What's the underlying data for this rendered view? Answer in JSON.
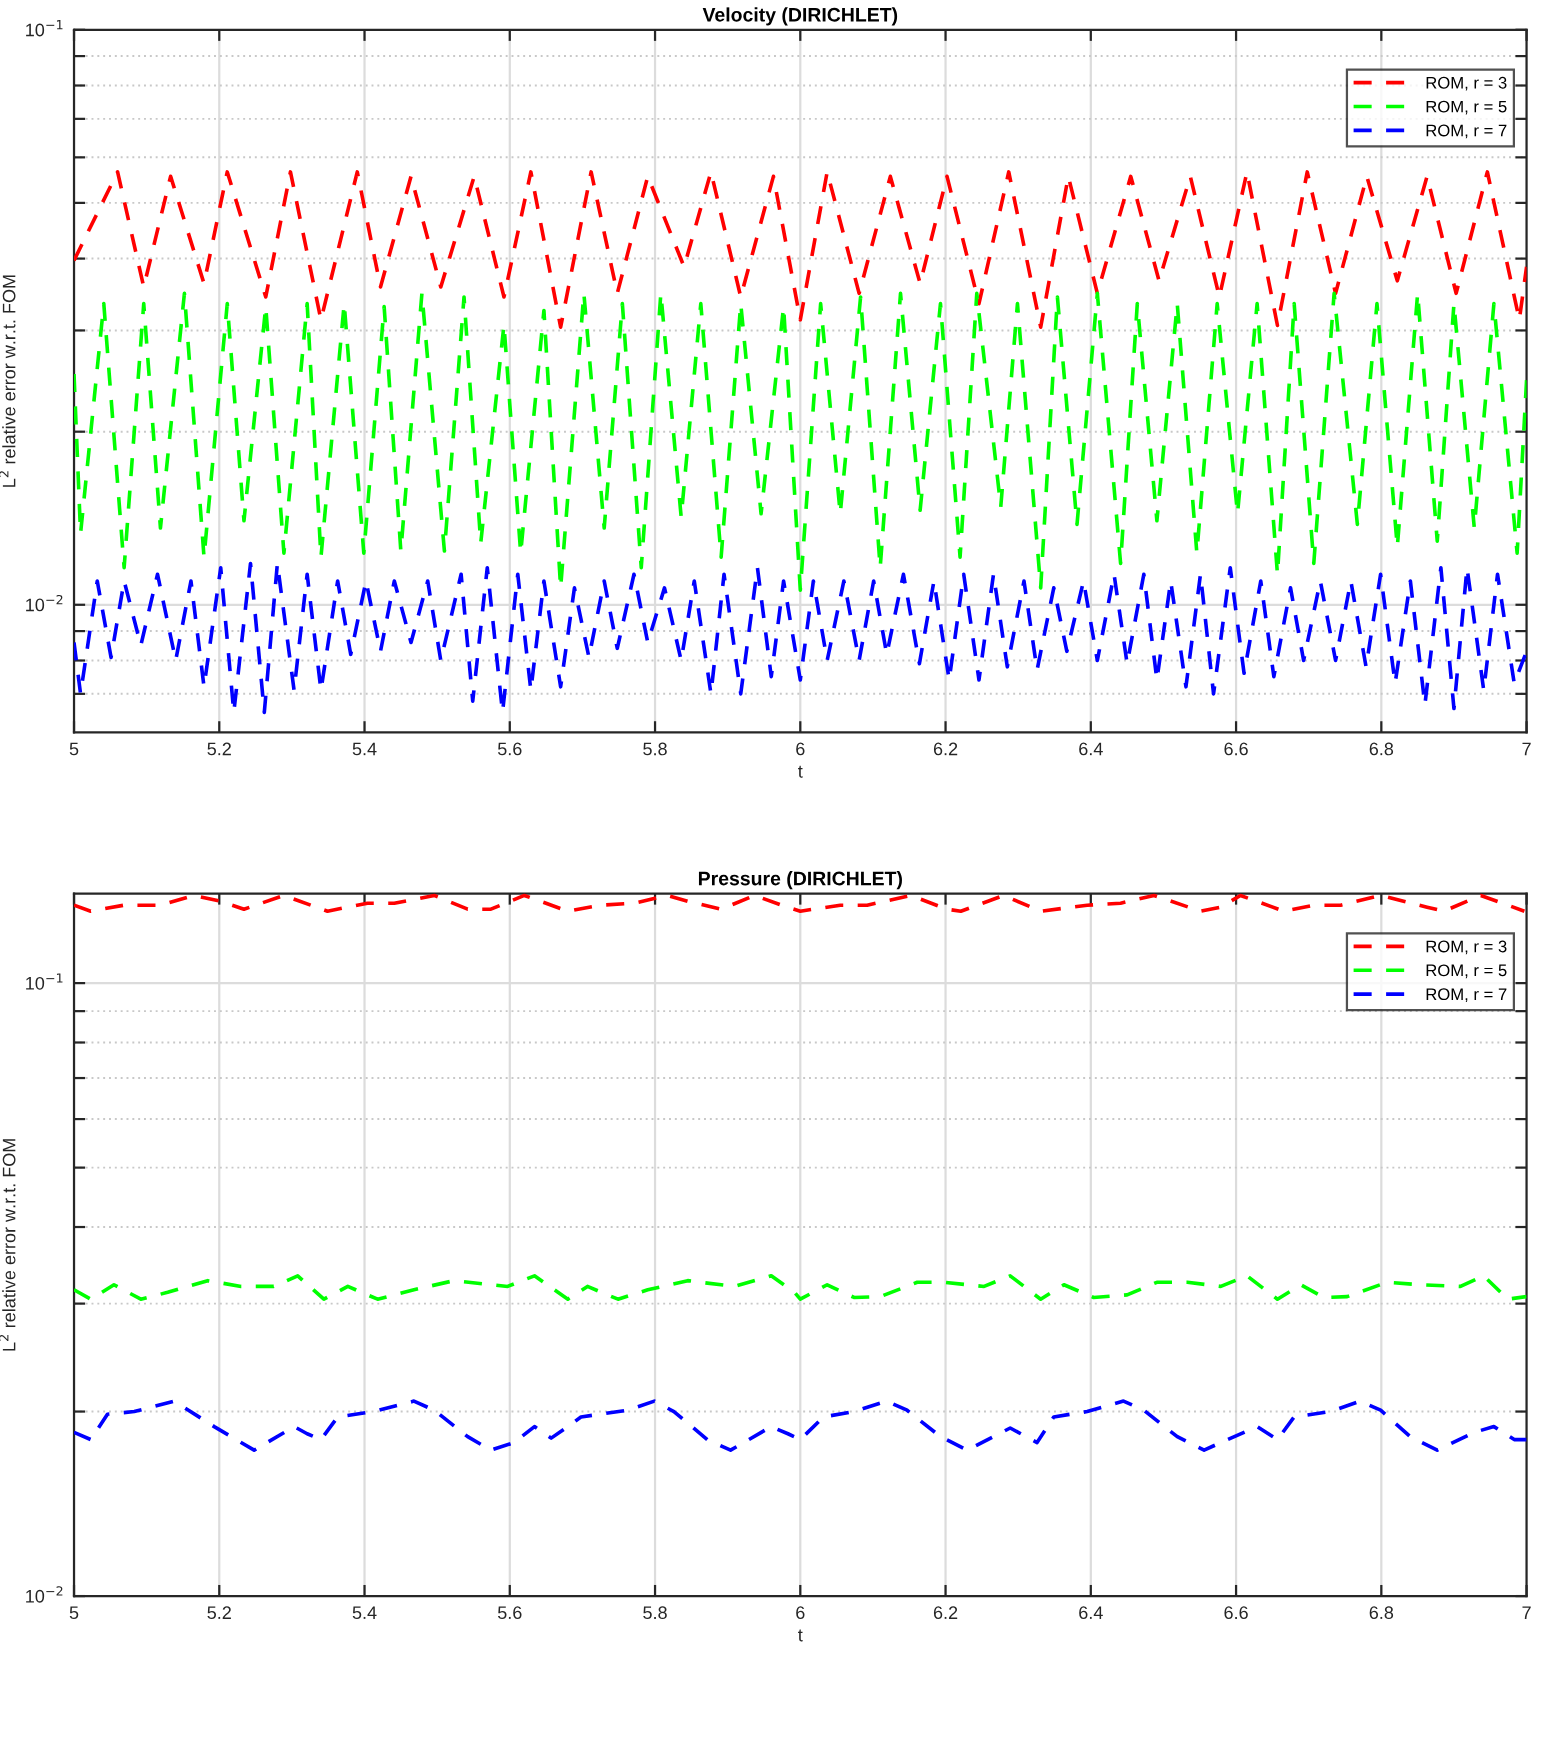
{
  "chart_data": [
    {
      "type": "line",
      "title": "Velocity (DIRICHLET)",
      "xlabel": "t",
      "ylabel": "L$^{2}$ relative error w.r.t. FOM",
      "log": "y",
      "grid": true,
      "legend": "top right",
      "line_style": "dashed",
      "marker": "none",
      "xlim": [
        5,
        7
      ],
      "xticks": [
        5,
        5.2,
        5.4,
        5.6,
        5.8,
        6,
        6.2,
        6.4,
        6.6,
        6.8,
        7
      ],
      "ylim": [
        0.006,
        0.1
      ],
      "yticks": [
        {
          "value": 0.007,
          "label": null
        },
        {
          "value": 0.008,
          "label": null
        },
        {
          "value": 0.009,
          "label": null
        },
        {
          "value": 0.01,
          "label": "10$^{−2}$"
        },
        {
          "value": 0.02,
          "label": null
        },
        {
          "value": 0.03,
          "label": null
        },
        {
          "value": 0.04,
          "label": null
        },
        {
          "value": 0.05,
          "label": null
        },
        {
          "value": 0.06,
          "label": null
        },
        {
          "value": 0.07,
          "label": null
        },
        {
          "value": 0.08,
          "label": null
        },
        {
          "value": 0.09,
          "label": null
        },
        {
          "value": 0.1,
          "label": "10$^{−1}$"
        }
      ],
      "series": [
        {
          "name": "ROM, r = 3",
          "color": "#ff0000",
          "x": [
            5.0,
            5.06,
            5.096,
            5.133,
            5.179,
            5.211,
            5.264,
            5.298,
            5.34,
            5.39,
            5.422,
            5.464,
            5.505,
            5.551,
            5.592,
            5.629,
            5.67,
            5.712,
            5.748,
            5.79,
            5.84,
            5.877,
            5.918,
            5.963,
            6.0,
            6.037,
            6.081,
            6.124,
            6.165,
            6.202,
            6.246,
            6.287,
            6.331,
            6.369,
            6.409,
            6.455,
            6.494,
            6.537,
            6.577,
            6.615,
            6.657,
            6.698,
            6.737,
            6.78,
            6.822,
            6.863,
            6.903,
            6.946,
            6.99,
            7.0
          ],
          "values": [
            0.0397,
            0.0566,
            0.0357,
            0.0556,
            0.0362,
            0.0566,
            0.0343,
            0.0566,
            0.0313,
            0.0566,
            0.0357,
            0.0556,
            0.0357,
            0.0556,
            0.0343,
            0.0566,
            0.0304,
            0.0566,
            0.0348,
            0.0556,
            0.0387,
            0.0566,
            0.0343,
            0.0556,
            0.0313,
            0.0566,
            0.0348,
            0.0556,
            0.0362,
            0.0556,
            0.0334,
            0.0566,
            0.0304,
            0.0556,
            0.0348,
            0.0556,
            0.0366,
            0.0556,
            0.0343,
            0.0566,
            0.0306,
            0.0566,
            0.0348,
            0.0556,
            0.0366,
            0.0556,
            0.0348,
            0.0566,
            0.0313,
            0.0387
          ]
        },
        {
          "name": "ROM, r = 5",
          "color": "#00ff00",
          "x": [
            5.0,
            5.009,
            5.041,
            5.069,
            5.096,
            5.119,
            5.152,
            5.179,
            5.211,
            5.234,
            5.264,
            5.289,
            5.321,
            5.34,
            5.372,
            5.399,
            5.427,
            5.45,
            5.479,
            5.51,
            5.537,
            5.56,
            5.592,
            5.615,
            5.647,
            5.67,
            5.702,
            5.73,
            5.755,
            5.781,
            5.808,
            5.836,
            5.863,
            5.891,
            5.918,
            5.946,
            5.977,
            6.0,
            6.028,
            6.055,
            6.083,
            6.11,
            6.138,
            6.165,
            6.193,
            6.22,
            6.243,
            6.276,
            6.299,
            6.331,
            6.354,
            6.381,
            6.409,
            6.441,
            6.464,
            6.491,
            6.519,
            6.546,
            6.574,
            6.602,
            6.629,
            6.657,
            6.68,
            6.707,
            6.735,
            6.767,
            6.794,
            6.822,
            6.85,
            6.877,
            6.9,
            6.928,
            6.955,
            6.987,
            7.0
          ],
          "values": [
            0.0252,
            0.0133,
            0.0334,
            0.0116,
            0.0334,
            0.0136,
            0.0348,
            0.0121,
            0.0334,
            0.014,
            0.033,
            0.0123,
            0.0334,
            0.0121,
            0.0334,
            0.0123,
            0.033,
            0.0124,
            0.0348,
            0.0124,
            0.0343,
            0.0128,
            0.0307,
            0.0123,
            0.0325,
            0.0107,
            0.0348,
            0.0136,
            0.0334,
            0.0116,
            0.0348,
            0.0142,
            0.0334,
            0.0121,
            0.0334,
            0.0144,
            0.033,
            0.0106,
            0.0334,
            0.0144,
            0.0343,
            0.0116,
            0.0348,
            0.0146,
            0.0334,
            0.0121,
            0.0348,
            0.0148,
            0.0334,
            0.0107,
            0.0343,
            0.0138,
            0.0348,
            0.0118,
            0.0334,
            0.014,
            0.0334,
            0.0123,
            0.0334,
            0.0144,
            0.0334,
            0.0113,
            0.0334,
            0.0118,
            0.0348,
            0.0138,
            0.0334,
            0.0126,
            0.0348,
            0.0129,
            0.0334,
            0.0136,
            0.0334,
            0.0123,
            0.0246
          ]
        },
        {
          "name": "ROM, r = 7",
          "color": "#0000ff",
          "x": [
            5.0,
            5.009,
            5.032,
            5.051,
            5.069,
            5.092,
            5.115,
            5.14,
            5.161,
            5.179,
            5.202,
            5.22,
            5.243,
            5.262,
            5.28,
            5.303,
            5.321,
            5.34,
            5.363,
            5.381,
            5.402,
            5.422,
            5.441,
            5.464,
            5.487,
            5.505,
            5.533,
            5.549,
            5.569,
            5.59,
            5.611,
            5.629,
            5.647,
            5.67,
            5.689,
            5.709,
            5.73,
            5.748,
            5.771,
            5.79,
            5.813,
            5.836,
            5.854,
            5.877,
            5.895,
            5.918,
            5.941,
            5.96,
            5.977,
            6.0,
            6.018,
            6.037,
            6.06,
            6.081,
            6.101,
            6.119,
            6.142,
            6.164,
            6.184,
            6.205,
            6.225,
            6.246,
            6.266,
            6.285,
            6.308,
            6.326,
            6.349,
            6.367,
            6.39,
            6.409,
            6.432,
            6.45,
            6.473,
            6.491,
            6.51,
            6.531,
            6.551,
            6.569,
            6.592,
            6.611,
            6.634,
            6.652,
            6.675,
            6.693,
            6.716,
            6.737,
            6.758,
            6.779,
            6.799,
            6.819,
            6.84,
            6.86,
            6.882,
            6.9,
            6.918,
            6.941,
            6.96,
            6.983,
            7.0
          ],
          "values": [
            0.0086,
            0.007,
            0.011,
            0.0081,
            0.011,
            0.0085,
            0.0113,
            0.008,
            0.011,
            0.0072,
            0.0116,
            0.0065,
            0.0118,
            0.0065,
            0.0118,
            0.0071,
            0.0113,
            0.0071,
            0.011,
            0.0082,
            0.011,
            0.0083,
            0.011,
            0.0086,
            0.011,
            0.008,
            0.0113,
            0.0068,
            0.0116,
            0.0065,
            0.0113,
            0.0071,
            0.011,
            0.0072,
            0.0107,
            0.0081,
            0.011,
            0.0084,
            0.0113,
            0.0086,
            0.0107,
            0.008,
            0.011,
            0.007,
            0.0113,
            0.007,
            0.0116,
            0.0075,
            0.011,
            0.0074,
            0.011,
            0.008,
            0.011,
            0.008,
            0.011,
            0.0082,
            0.0113,
            0.0079,
            0.011,
            0.0074,
            0.0113,
            0.0074,
            0.0113,
            0.0078,
            0.011,
            0.0077,
            0.0107,
            0.0083,
            0.011,
            0.008,
            0.0113,
            0.0079,
            0.0113,
            0.0074,
            0.011,
            0.0072,
            0.0113,
            0.007,
            0.0116,
            0.0076,
            0.011,
            0.0075,
            0.0107,
            0.008,
            0.011,
            0.008,
            0.011,
            0.0078,
            0.0113,
            0.0073,
            0.011,
            0.0067,
            0.0116,
            0.0066,
            0.0116,
            0.0071,
            0.0113,
            0.0073,
            0.0083
          ]
        }
      ]
    },
    {
      "type": "line",
      "title": "Pressure (DIRICHLET)",
      "xlabel": "t",
      "ylabel": "L$^{2}$ relative error w.r.t. FOM",
      "log": "y",
      "grid": true,
      "legend": "top right",
      "line_style": "dashed",
      "marker": "none",
      "xlim": [
        5,
        7
      ],
      "xticks": [
        5,
        5.2,
        5.4,
        5.6,
        5.8,
        6,
        6.2,
        6.4,
        6.6,
        6.8,
        7
      ],
      "ylim": [
        0.01,
        0.14
      ],
      "yticks": [
        {
          "value": 0.01,
          "label": "10$^{−2}$"
        },
        {
          "value": 0.02,
          "label": null
        },
        {
          "value": 0.03,
          "label": null
        },
        {
          "value": 0.04,
          "label": null
        },
        {
          "value": 0.05,
          "label": null
        },
        {
          "value": 0.06,
          "label": null
        },
        {
          "value": 0.07,
          "label": null
        },
        {
          "value": 0.08,
          "label": null
        },
        {
          "value": 0.09,
          "label": null
        },
        {
          "value": 0.1,
          "label": "10$^{−1}$"
        }
      ],
      "series": [
        {
          "name": "ROM, r = 3",
          "color": "#ff0000",
          "x": [
            5.0,
            5.023,
            5.069,
            5.119,
            5.165,
            5.202,
            5.234,
            5.289,
            5.349,
            5.404,
            5.441,
            5.496,
            5.542,
            5.574,
            5.62,
            5.68,
            5.725,
            5.771,
            5.817,
            5.845,
            5.891,
            5.937,
            5.982,
            6.0,
            6.055,
            6.092,
            6.152,
            6.202,
            6.221,
            6.28,
            6.331,
            6.395,
            6.441,
            6.487,
            6.551,
            6.579,
            6.606,
            6.666,
            6.707,
            6.744,
            6.799,
            6.863,
            6.886,
            6.937,
            6.997
          ],
          "values": [
            0.134,
            0.131,
            0.134,
            0.134,
            0.139,
            0.136,
            0.132,
            0.139,
            0.131,
            0.135,
            0.135,
            0.139,
            0.132,
            0.132,
            0.139,
            0.131,
            0.134,
            0.135,
            0.139,
            0.136,
            0.132,
            0.139,
            0.133,
            0.131,
            0.134,
            0.134,
            0.139,
            0.132,
            0.131,
            0.139,
            0.131,
            0.134,
            0.135,
            0.139,
            0.131,
            0.133,
            0.139,
            0.131,
            0.134,
            0.134,
            0.139,
            0.133,
            0.131,
            0.139,
            0.131
          ]
        },
        {
          "name": "ROM, r = 5",
          "color": "#00ff00",
          "x": [
            5.0,
            5.023,
            5.055,
            5.092,
            5.129,
            5.184,
            5.23,
            5.275,
            5.308,
            5.344,
            5.377,
            5.418,
            5.468,
            5.523,
            5.597,
            5.634,
            5.68,
            5.707,
            5.749,
            5.79,
            5.845,
            5.909,
            5.96,
            5.992,
            6.0,
            6.037,
            6.074,
            6.11,
            6.161,
            6.198,
            6.253,
            6.289,
            6.331,
            6.363,
            6.404,
            6.45,
            6.491,
            6.533,
            6.579,
            6.615,
            6.657,
            6.689,
            6.721,
            6.753,
            6.808,
            6.854,
            6.909,
            6.941,
            6.974,
            7.0
          ],
          "values": [
            0.0316,
            0.0305,
            0.0322,
            0.0305,
            0.0313,
            0.0327,
            0.032,
            0.032,
            0.0333,
            0.0305,
            0.032,
            0.0305,
            0.0316,
            0.0327,
            0.032,
            0.0333,
            0.0305,
            0.032,
            0.0305,
            0.0316,
            0.0327,
            0.032,
            0.0333,
            0.0313,
            0.0305,
            0.0322,
            0.0307,
            0.0308,
            0.0325,
            0.0325,
            0.032,
            0.0333,
            0.0305,
            0.0322,
            0.0307,
            0.031,
            0.0325,
            0.0325,
            0.032,
            0.0333,
            0.0305,
            0.0322,
            0.0307,
            0.0308,
            0.0325,
            0.0322,
            0.032,
            0.0333,
            0.0305,
            0.0308
          ]
        },
        {
          "name": "ROM, r = 7",
          "color": "#0000ff",
          "x": [
            5.0,
            5.023,
            5.046,
            5.083,
            5.138,
            5.193,
            5.248,
            5.303,
            5.321,
            5.34,
            5.363,
            5.413,
            5.468,
            5.496,
            5.542,
            5.574,
            5.606,
            5.634,
            5.657,
            5.68,
            5.698,
            5.762,
            5.799,
            5.826,
            5.872,
            5.904,
            5.96,
            5.983,
            6.0,
            6.032,
            6.074,
            6.119,
            6.147,
            6.193,
            6.23,
            6.289,
            6.326,
            6.349,
            6.395,
            6.445,
            6.473,
            6.519,
            6.556,
            6.588,
            6.629,
            6.657,
            6.68,
            6.73,
            6.771,
            6.799,
            6.84,
            6.877,
            6.928,
            6.955,
            6.983,
            7.0
          ],
          "values": [
            0.0185,
            0.018,
            0.0198,
            0.02,
            0.0208,
            0.0189,
            0.0173,
            0.0189,
            0.0184,
            0.018,
            0.0196,
            0.02,
            0.0208,
            0.0201,
            0.0182,
            0.0173,
            0.0178,
            0.0189,
            0.0181,
            0.0189,
            0.0196,
            0.0201,
            0.0208,
            0.02,
            0.018,
            0.0173,
            0.0189,
            0.0184,
            0.018,
            0.0196,
            0.02,
            0.0208,
            0.0201,
            0.0182,
            0.0173,
            0.0188,
            0.0178,
            0.0196,
            0.02,
            0.0208,
            0.0201,
            0.0182,
            0.0173,
            0.018,
            0.0189,
            0.018,
            0.0196,
            0.02,
            0.0208,
            0.0201,
            0.0182,
            0.0173,
            0.0185,
            0.0189,
            0.018,
            0.018
          ]
        }
      ]
    }
  ]
}
